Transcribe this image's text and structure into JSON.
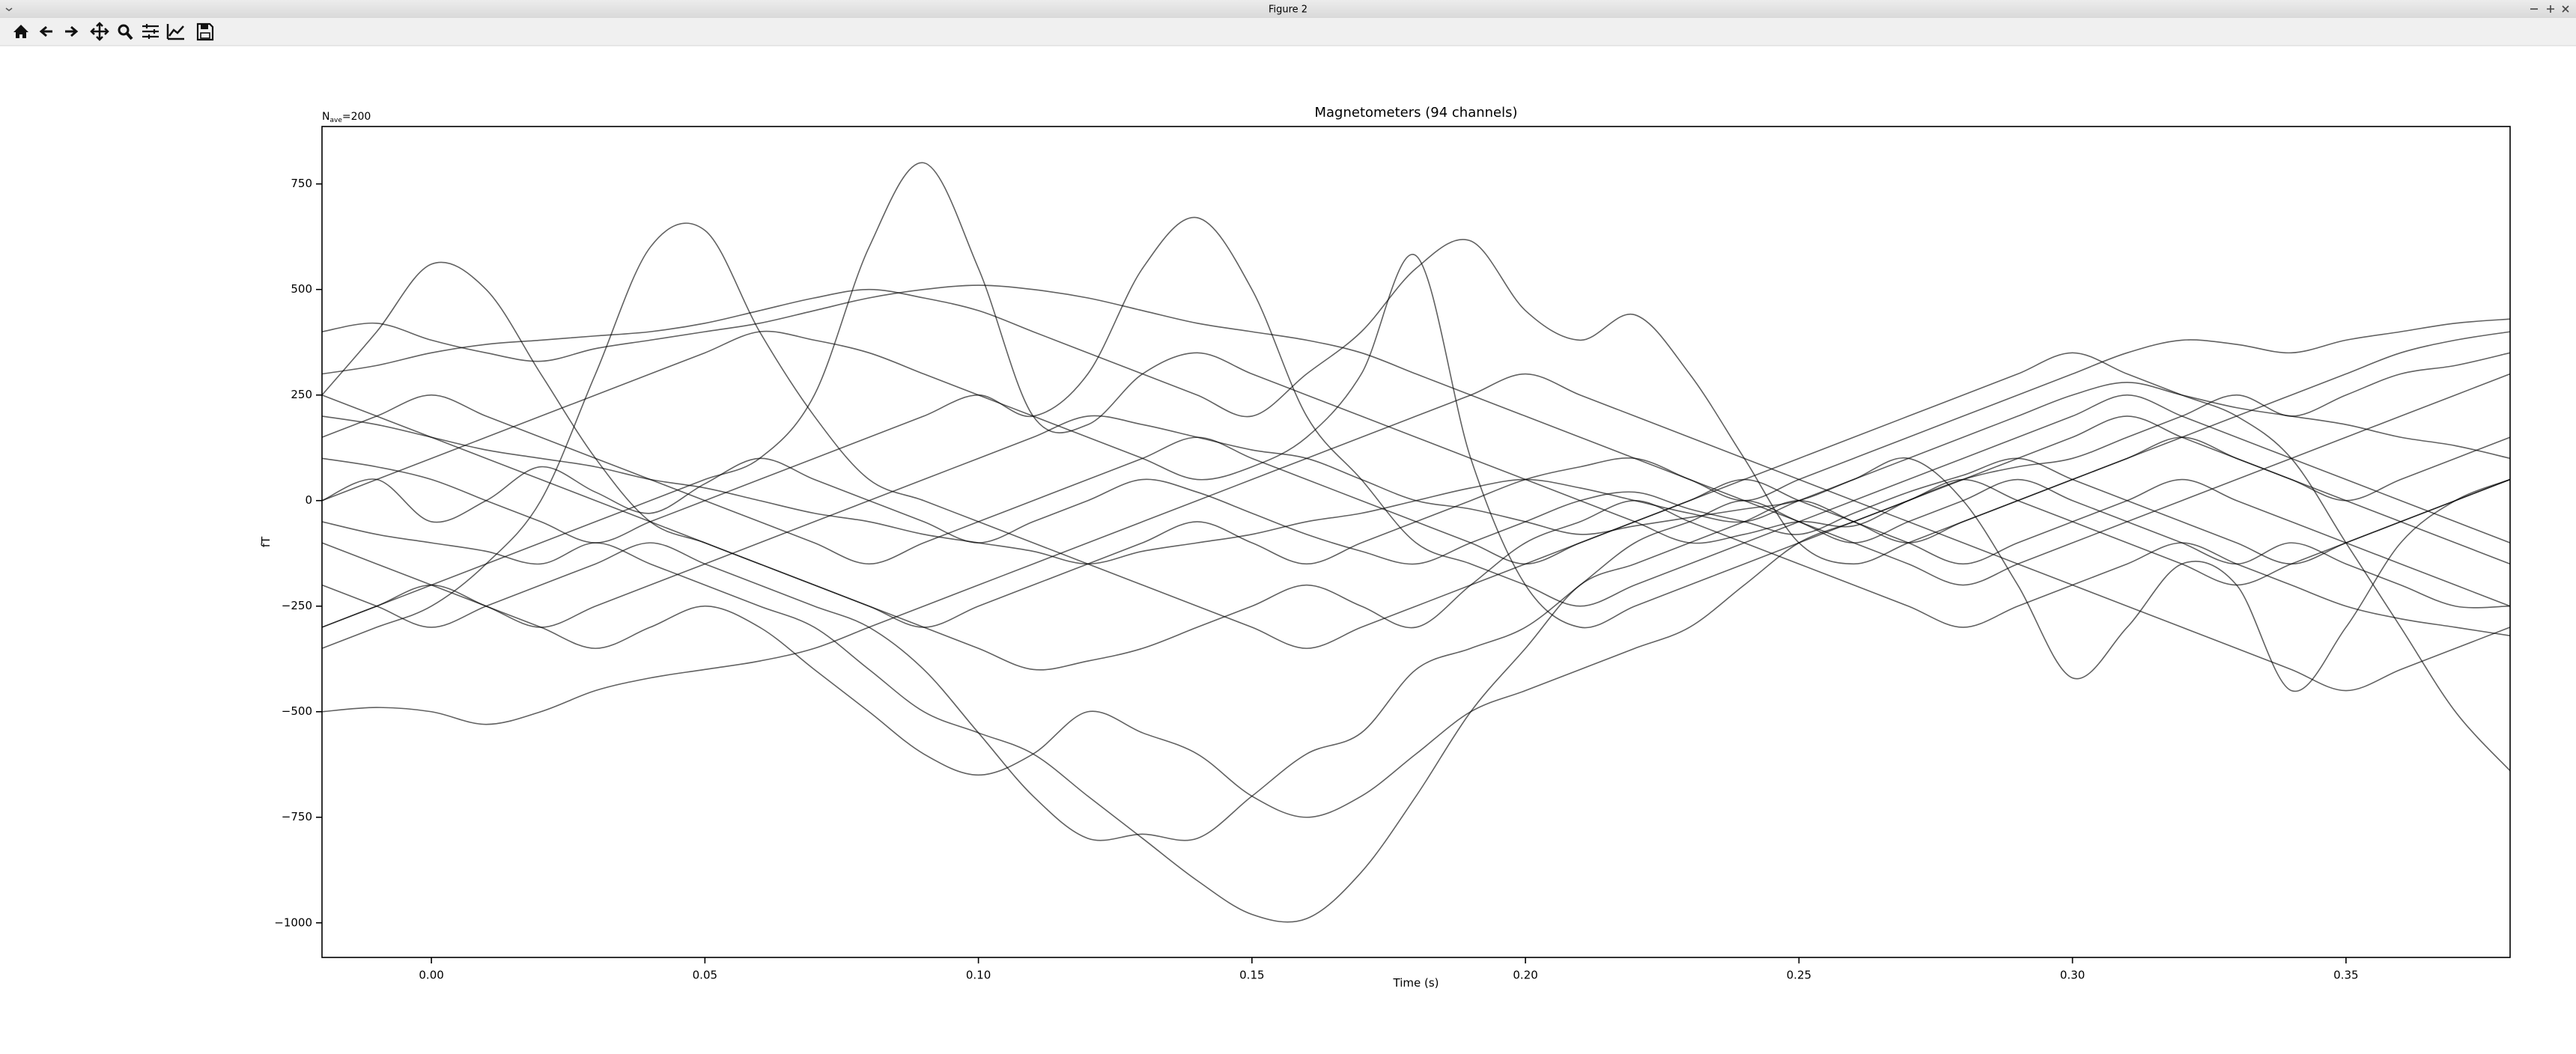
{
  "window": {
    "title": "Figure 2"
  },
  "chart_data": {
    "type": "line",
    "title": "Magnetometers (94 channels)",
    "annotation": {
      "main": "N",
      "subscript": "ave",
      "rest": "=200"
    },
    "x_label": "Time (s)",
    "y_label": "fT",
    "color": "#000000",
    "grid": false,
    "xlim": [
      -0.02,
      0.38
    ],
    "ylim": [
      -1082,
      886
    ],
    "xticks": [
      {
        "value": 0,
        "label": "0.00"
      },
      0.05,
      {
        "value": 0.1,
        "label": "0.10"
      },
      0.15,
      {
        "value": 0.2,
        "label": "0.20"
      },
      0.25,
      {
        "value": 0.3,
        "label": "0.30"
      },
      0.35
    ],
    "yticks": [
      {
        "value": -1000,
        "label": "−1000"
      },
      {
        "value": -750,
        "label": "−750"
      },
      {
        "value": -500,
        "label": "−500"
      },
      {
        "value": -250,
        "label": "−250"
      },
      0,
      250,
      500,
      750
    ],
    "x": [
      -0.02,
      -0.01,
      0,
      0.01,
      0.02,
      0.03,
      0.04,
      0.05,
      0.06,
      0.07,
      0.08,
      0.09,
      0.1,
      0.11,
      0.12,
      0.13,
      0.14,
      0.15,
      0.16,
      0.17,
      0.18,
      0.19,
      0.2,
      0.21,
      0.22,
      0.23,
      0.24,
      0.25,
      0.26,
      0.27,
      0.28,
      0.29,
      0.3,
      0.31,
      0.32,
      0.33,
      0.34,
      0.35,
      0.36,
      0.37,
      0.38
    ],
    "series": [
      {
        "values": [
          -300,
          -250,
          -200,
          -150,
          -100,
          -50,
          0,
          50,
          100,
          250,
          600,
          800,
          550,
          200,
          180,
          300,
          350,
          300,
          250,
          200,
          150,
          100,
          50,
          0,
          -50,
          -100,
          -80,
          -50,
          -60,
          0,
          50,
          80,
          100,
          150,
          200,
          250,
          200,
          250,
          300,
          320,
          350
        ]
      },
      {
        "values": [
          -50,
          -80,
          -100,
          -120,
          -150,
          -100,
          -150,
          -200,
          -250,
          -300,
          -400,
          -500,
          -550,
          -600,
          -700,
          -800,
          -900,
          -980,
          -990,
          -880,
          -700,
          -500,
          -350,
          -200,
          -150,
          -100,
          -50,
          0,
          -50,
          -100,
          -50,
          0,
          50,
          100,
          150,
          100,
          50,
          0,
          50,
          100,
          150
        ]
      },
      {
        "values": [
          250,
          400,
          560,
          500,
          300,
          100,
          -50,
          -100,
          -150,
          -200,
          -250,
          -300,
          -250,
          -200,
          -150,
          -100,
          -50,
          -100,
          -150,
          -100,
          -50,
          0,
          50,
          80,
          100,
          50,
          0,
          -50,
          -100,
          -50,
          0,
          50,
          0,
          -50,
          -100,
          -150,
          -100,
          -150,
          -200,
          -250,
          -250
        ]
      },
      {
        "values": [
          -350,
          -300,
          -250,
          -150,
          0,
          300,
          600,
          640,
          400,
          200,
          50,
          0,
          -50,
          -100,
          -150,
          -200,
          -250,
          -300,
          -350,
          -300,
          -250,
          -200,
          -150,
          -100,
          -50,
          0,
          50,
          0,
          -50,
          -100,
          -150,
          -100,
          -50,
          0,
          50,
          0,
          -50,
          -100,
          -150,
          -200,
          -250
        ]
      },
      {
        "values": [
          100,
          80,
          50,
          0,
          -50,
          -100,
          -50,
          0,
          50,
          100,
          150,
          200,
          250,
          200,
          300,
          550,
          670,
          500,
          200,
          50,
          -100,
          -150,
          -200,
          -250,
          -200,
          -150,
          -100,
          -50,
          0,
          50,
          100,
          150,
          200,
          250,
          200,
          150,
          100,
          50,
          0,
          -50,
          -100
        ]
      },
      {
        "values": [
          0,
          50,
          100,
          150,
          200,
          250,
          300,
          350,
          400,
          380,
          350,
          300,
          250,
          200,
          150,
          100,
          50,
          80,
          150,
          300,
          580,
          100,
          -200,
          -300,
          -250,
          -200,
          -150,
          -100,
          -50,
          0,
          50,
          100,
          150,
          200,
          150,
          100,
          50,
          0,
          -50,
          -100,
          -150
        ]
      },
      {
        "values": [
          300,
          320,
          350,
          370,
          380,
          390,
          400,
          420,
          450,
          480,
          500,
          480,
          450,
          400,
          350,
          300,
          250,
          200,
          300,
          400,
          550,
          615,
          450,
          380,
          440,
          300,
          100,
          -100,
          -150,
          -100,
          -50,
          0,
          50,
          100,
          150,
          200,
          250,
          300,
          350,
          380,
          400
        ]
      },
      {
        "values": [
          -200,
          -250,
          -300,
          -250,
          -200,
          -150,
          -100,
          -150,
          -200,
          -250,
          -300,
          -400,
          -550,
          -700,
          -800,
          -790,
          -800,
          -700,
          -600,
          -550,
          -400,
          -350,
          -300,
          -200,
          -100,
          -50,
          0,
          -50,
          -100,
          -150,
          -200,
          -150,
          -100,
          -50,
          0,
          50,
          100,
          150,
          200,
          250,
          300
        ]
      },
      {
        "values": [
          -100,
          -150,
          -200,
          -250,
          -300,
          -350,
          -300,
          -250,
          -300,
          -400,
          -500,
          -600,
          -650,
          -600,
          -500,
          -550,
          -600,
          -700,
          -750,
          -700,
          -600,
          -500,
          -450,
          -400,
          -350,
          -300,
          -200,
          -100,
          -50,
          0,
          50,
          0,
          -50,
          -100,
          -150,
          -200,
          -150,
          -100,
          -50,
          0,
          50
        ]
      },
      {
        "values": [
          -500,
          -490,
          -500,
          -530,
          -500,
          -450,
          -420,
          -400,
          -380,
          -350,
          -300,
          -250,
          -200,
          -150,
          -100,
          -50,
          0,
          50,
          100,
          150,
          200,
          250,
          300,
          250,
          200,
          150,
          100,
          50,
          0,
          -50,
          -100,
          -150,
          -200,
          -250,
          -300,
          -350,
          -400,
          -450,
          -400,
          -350,
          -300
        ]
      },
      {
        "values": [
          200,
          180,
          150,
          120,
          100,
          80,
          50,
          30,
          0,
          -30,
          -50,
          -80,
          -100,
          -120,
          -150,
          -120,
          -100,
          -80,
          -50,
          -30,
          0,
          30,
          50,
          30,
          0,
          -30,
          -50,
          0,
          50,
          100,
          0,
          -200,
          -420,
          -300,
          -150,
          -200,
          -450,
          -300,
          -100,
          0,
          50
        ]
      },
      {
        "values": [
          150,
          200,
          250,
          200,
          150,
          100,
          50,
          0,
          -50,
          -100,
          -150,
          -100,
          -50,
          0,
          50,
          100,
          150,
          100,
          50,
          0,
          -50,
          -100,
          -150,
          -100,
          -50,
          0,
          50,
          100,
          150,
          200,
          250,
          300,
          350,
          300,
          250,
          200,
          100,
          -100,
          -300,
          -500,
          -640
        ]
      },
      {
        "values": [
          400,
          420,
          380,
          350,
          330,
          360,
          380,
          400,
          420,
          450,
          480,
          500,
          510,
          500,
          480,
          450,
          420,
          400,
          380,
          350,
          300,
          250,
          200,
          150,
          100,
          50,
          0,
          50,
          100,
          150,
          200,
          250,
          300,
          350,
          380,
          370,
          350,
          380,
          400,
          420,
          430
        ]
      },
      {
        "values": [
          0,
          50,
          -50,
          0,
          80,
          20,
          -30,
          40,
          100,
          50,
          0,
          -50,
          -100,
          -50,
          0,
          50,
          20,
          -30,
          -80,
          -120,
          -150,
          -100,
          -50,
          0,
          20,
          -20,
          -50,
          -80,
          -30,
          20,
          60,
          100,
          50,
          0,
          -50,
          -100,
          -150,
          -100,
          -50,
          0,
          50
        ]
      },
      {
        "values": [
          -300,
          -250,
          -200,
          -250,
          -300,
          -250,
          -200,
          -150,
          -100,
          -50,
          0,
          50,
          100,
          150,
          200,
          180,
          150,
          120,
          100,
          50,
          0,
          -20,
          -50,
          -80,
          -60,
          -40,
          -20,
          0,
          50,
          100,
          150,
          200,
          250,
          280,
          250,
          220,
          200,
          180,
          150,
          130,
          100
        ]
      },
      {
        "values": [
          250,
          200,
          150,
          100,
          50,
          0,
          -50,
          -100,
          -150,
          -200,
          -250,
          -300,
          -350,
          -400,
          -380,
          -350,
          -300,
          -250,
          -200,
          -250,
          -300,
          -200,
          -100,
          -50,
          0,
          -50,
          -100,
          -150,
          -200,
          -250,
          -300,
          -250,
          -200,
          -150,
          -100,
          -150,
          -200,
          -250,
          -280,
          -300,
          -320
        ]
      }
    ]
  }
}
